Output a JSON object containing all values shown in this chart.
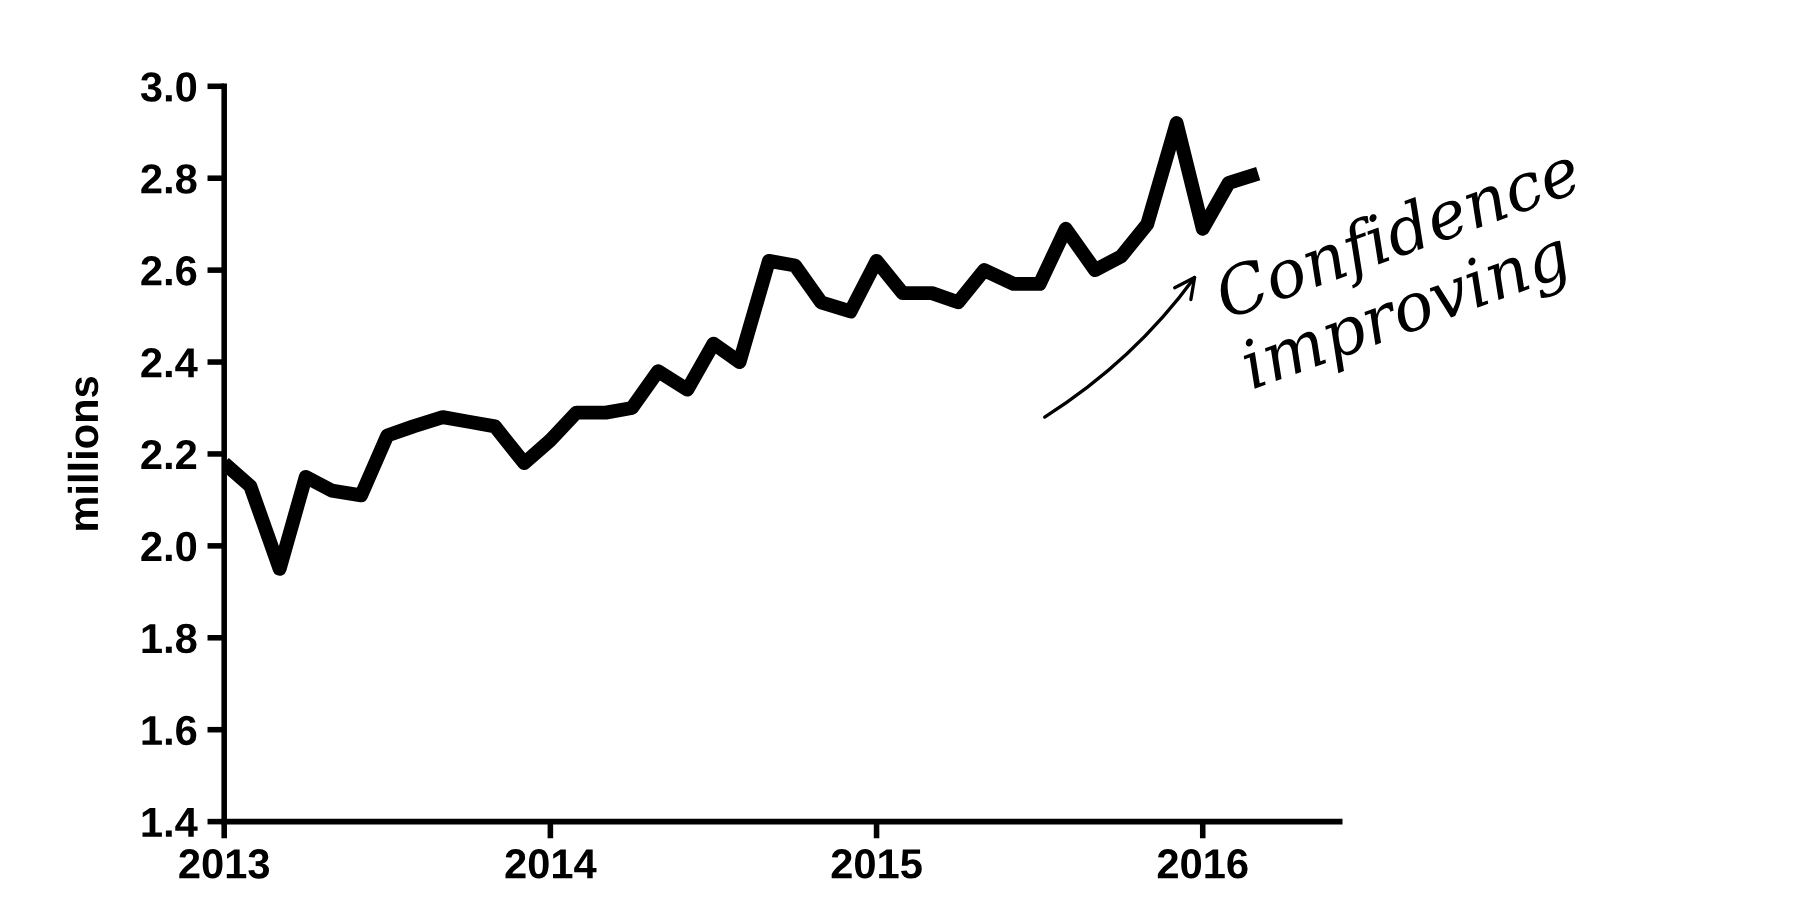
{
  "chart_data": {
    "type": "line",
    "ylabel": "millions",
    "x": [
      2013.0,
      2013.08,
      2013.17,
      2013.25,
      2013.33,
      2013.42,
      2013.5,
      2013.58,
      2013.67,
      2013.75,
      2013.83,
      2013.92,
      2014.0,
      2014.08,
      2014.17,
      2014.25,
      2014.33,
      2014.42,
      2014.5,
      2014.58,
      2014.67,
      2014.75,
      2014.83,
      2014.92,
      2015.0,
      2015.08,
      2015.17,
      2015.25,
      2015.33,
      2015.42,
      2015.5,
      2015.58,
      2015.67,
      2015.75,
      2015.83,
      2015.92,
      2016.0,
      2016.08,
      2016.17
    ],
    "series": [
      {
        "color": "#000000",
        "values": [
          2.18,
          2.13,
          1.95,
          2.15,
          2.12,
          2.11,
          2.24,
          2.26,
          2.28,
          2.27,
          2.26,
          2.18,
          2.23,
          2.29,
          2.29,
          2.3,
          2.38,
          2.34,
          2.44,
          2.4,
          2.62,
          2.61,
          2.53,
          2.51,
          2.62,
          2.55,
          2.55,
          2.53,
          2.6,
          2.57,
          2.57,
          2.69,
          2.6,
          2.63,
          2.7,
          2.92,
          2.69,
          2.79,
          2.81
        ]
      }
    ],
    "xlim": [
      2013,
      2016.42
    ],
    "xticks": [
      2013,
      2014,
      2015,
      2016
    ],
    "ylim": [
      1.4,
      3.0
    ],
    "yticks": [
      {
        "value": 1.4,
        "label": "1.4"
      },
      {
        "value": 1.6,
        "label": "1.6"
      },
      {
        "value": 1.8,
        "label": "1.8"
      },
      {
        "value": 2.0,
        "label": "2.0"
      },
      {
        "value": 2.2,
        "label": "2.2"
      },
      {
        "value": 2.4,
        "label": "2.4"
      },
      {
        "value": 2.6,
        "label": "2.6"
      },
      {
        "value": 2.8,
        "label": "2.8"
      },
      {
        "value": 3.0,
        "label": "3.0"
      }
    ],
    "grid": false,
    "legend": false,
    "marker": "none",
    "line_style": "solid",
    "annotations": [
      "Confidence improving"
    ]
  }
}
